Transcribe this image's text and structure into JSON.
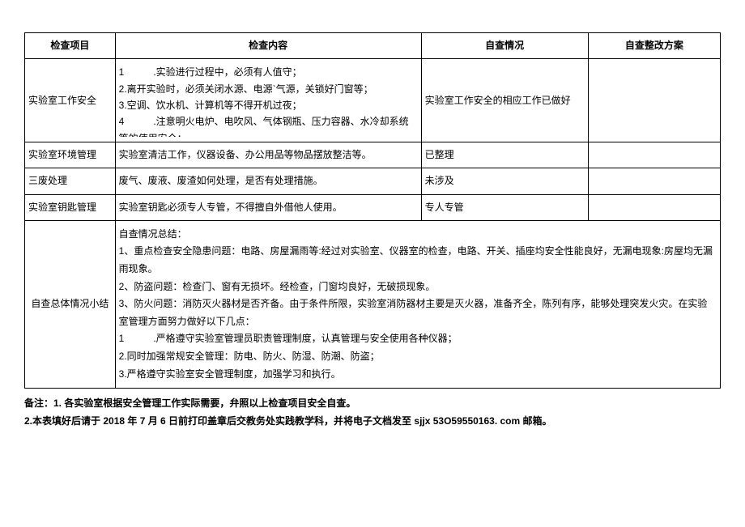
{
  "headers": {
    "col0": "检查项目",
    "col1": "检查内容",
    "col2": "自查情况",
    "col3": "自查整改方案"
  },
  "rows": {
    "safety": {
      "item": "实验室工作安全",
      "content": "1　　　.实验进行过程中，必须有人值守；\n2.离开实验时，必须关闭水源、电源`气源，关锁好门窗等；\n3.空调、饮水机、计算机等不得开机过夜；\n4　　　.注意明火电炉、电吹风、气体钢瓶、压力容器、水冷却系统等的使用安全；\n5.实验设计科学，实验操作规范，实验器材无故障",
      "status": "实验室工作安全的相应工作已做好",
      "plan": ""
    },
    "env": {
      "item": "实验室环境管理",
      "content": "实验室清洁工作，仪器设备、办公用品等物品摆放整洁等。",
      "status": "已整理",
      "plan": ""
    },
    "waste": {
      "item": "三废处理",
      "content": "废气、废液、废渣如何处理，是否有处理措施。",
      "status": "未涉及",
      "plan": ""
    },
    "key": {
      "item": "实验室钥匙管理",
      "content": "实验室钥匙必须专人专管，不得擅自外借他人使用。",
      "status": "专人专管",
      "plan": ""
    },
    "summary": {
      "item": "自查总体情况小结",
      "content": "自查情况总结：\n1、重点检查安全隐患问题：电路、房屋漏雨等:经过对实验室、仪器室的检查，电路、开关、插座均安全性能良好，无漏电现象:房屋均无漏雨现象。\n2、防盗问题：检查门、窗有无损坏。经检查，门窗均良好，无破损现象。\n3、防火问题：消防灭火器材是否齐备。由于条件所限，实验室消防器材主要是灭火器，准备齐全，陈列有序，能够处理突发火灾。在实验室管理方面努力做好以下几点：\n1　　　.严格遵守实验室管理员职责管理制度，认真管理与安全使用各种仪器；\n2.同时加强常规安全管理：防电、防火、防湿、防潮、防盗；\n3.严格遵守实验室安全管理制度，加强学习和执行。"
    }
  },
  "footnote": {
    "line1": "备注：1. 各实验室根据安全管理工作实际需要，弁照以上检查项目安全自查。",
    "line2": "2.本表填好后请于 2018 年 7 月 6 日前打印盖章后交教务处实践教学科，并将电子文档发至 sjjx 53O59550163. com 邮箱。"
  }
}
